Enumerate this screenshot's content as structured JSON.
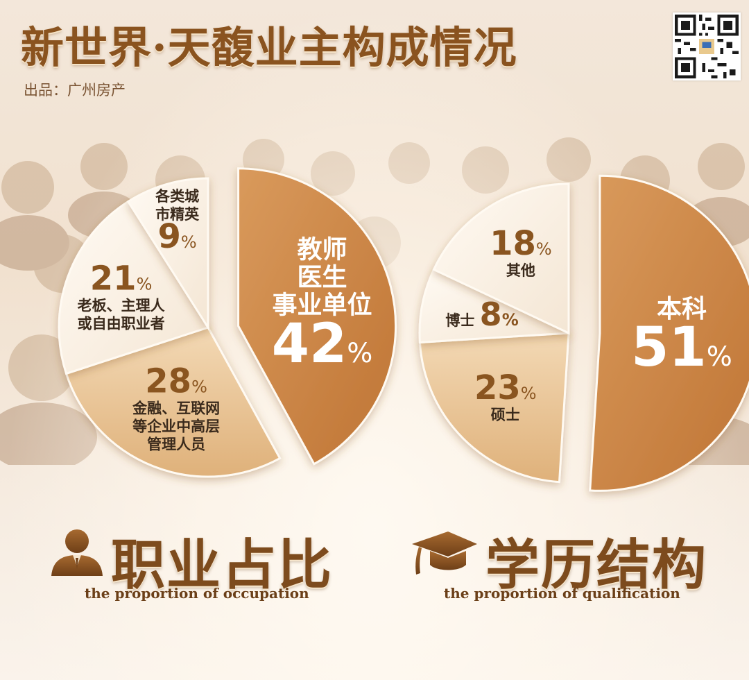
{
  "header": {
    "title": "新世界·天馥业主构成情况",
    "byline": "出品：广州房产"
  },
  "sections": {
    "occupation": {
      "title": "职业占比",
      "subtitle": "the proportion of occupation"
    },
    "qualification": {
      "title": "学历结构",
      "subtitle": "the proportion of  qualification"
    }
  },
  "colors": {
    "title": "#8a531f",
    "slice_orange": "#d18c4b",
    "slice_tan": "#ecc89a",
    "slice_cream": "#fbf0e3",
    "pct_brown": "#8a5520"
  },
  "icons": {
    "occupation": "person-icon",
    "qualification": "graduation-cap-icon",
    "qr": "qr-code-icon"
  },
  "chart_data": [
    {
      "type": "pie",
      "title": "职业占比",
      "slices": [
        {
          "label": "教师 医生 事业单位",
          "lines": [
            "教师",
            "医生",
            "事业单位"
          ],
          "value": 42,
          "pct": "42",
          "color": "#d18c4b",
          "exploded": true
        },
        {
          "label": "金融、互联网等企业中高层管理人员",
          "lines": [
            "金融、互联网",
            "等企业中高层",
            "管理人员"
          ],
          "value": 28,
          "pct": "28",
          "color": "#ecc89a",
          "exploded": false
        },
        {
          "label": "老板、主理人或自由职业者",
          "lines": [
            "老板、主理人",
            "或自由职业者"
          ],
          "value": 21,
          "pct": "21",
          "color": "#fbf0e3",
          "exploded": false
        },
        {
          "label": "各类城市精英",
          "lines": [
            "各类城",
            "市精英"
          ],
          "value": 9,
          "pct": "9",
          "color": "#fdf5ec",
          "exploded": false
        }
      ]
    },
    {
      "type": "pie",
      "title": "学历结构",
      "slices": [
        {
          "label": "本科",
          "lines": [
            "本科"
          ],
          "value": 51,
          "pct": "51",
          "color": "#d18c4b",
          "exploded": true
        },
        {
          "label": "硕士",
          "lines": [
            "硕士"
          ],
          "value": 23,
          "pct": "23",
          "color": "#ecc89a",
          "exploded": false
        },
        {
          "label": "博士",
          "lines": [
            "博士"
          ],
          "value": 8,
          "pct": "8",
          "color": "#fbf0e3",
          "exploded": false
        },
        {
          "label": "其他",
          "lines": [
            "其他"
          ],
          "value": 18,
          "pct": "18",
          "color": "#fdf5ec",
          "exploded": false
        }
      ]
    }
  ]
}
